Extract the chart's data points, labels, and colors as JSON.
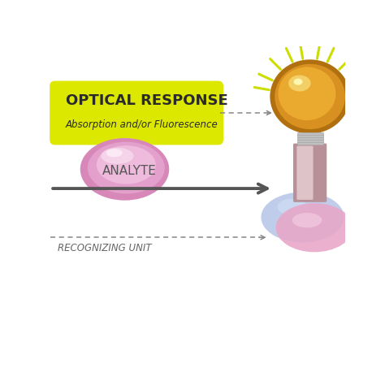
{
  "bg_color": "#ffffff",
  "optical_box_color": "#dde800",
  "optical_text1": "OPTICAL RESPONSE",
  "optical_text2": "Absorption and/or Fluorescence",
  "analyte_text": "ANALYTE",
  "recognizing_text": "RECOGNIZING UNIT",
  "arrow_color": "#555555",
  "dashed_line_color": "#888888",
  "ray_color": "#ccdd00",
  "bulb_color": "#e8a820",
  "bulb_highlight": "#f5d070",
  "bulb_shadow": "#c07010",
  "cap_color": "#c8c8c8",
  "flask_color": "#c8a0a8",
  "flask_highlight": "#e8d0d5",
  "receptor_blue": "#a0b8e0",
  "receptor_pink": "#e8a8c8"
}
